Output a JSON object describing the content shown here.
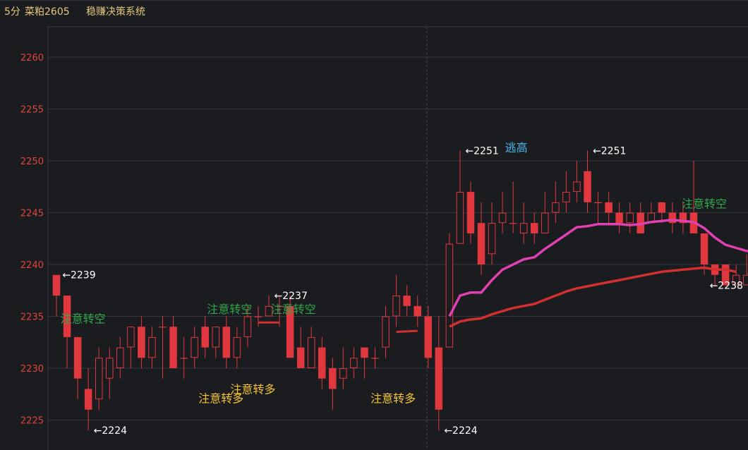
{
  "header": {
    "timeframe": "5分",
    "symbol": "菜粕2605",
    "system": "稳赚决策系统"
  },
  "chart_data": {
    "type": "candlestick",
    "ylim": [
      2222,
      2264
    ],
    "y_ticks": [
      2225,
      2230,
      2235,
      2240,
      2245,
      2250,
      2255,
      2260
    ],
    "grid": true,
    "candles": [
      [
        2239,
        2237,
        2239,
        2235
      ],
      [
        2237,
        2233,
        2237,
        2230
      ],
      [
        2233,
        2229,
        2233,
        2227
      ],
      [
        2228,
        2226,
        2230,
        2224
      ],
      [
        2227,
        2231,
        2232,
        2226
      ],
      [
        2229,
        2231,
        2232,
        2227
      ],
      [
        2230,
        2232,
        2233,
        2229
      ],
      [
        2232,
        2234,
        2234,
        2230
      ],
      [
        2234,
        2231,
        2235,
        2230
      ],
      [
        2231,
        2233,
        2234,
        2230
      ],
      [
        2234,
        2234,
        2235,
        2229
      ],
      [
        2234,
        2230,
        2235,
        2230
      ],
      [
        2231,
        2231,
        2233,
        2229
      ],
      [
        2231,
        2233,
        2234,
        2230
      ],
      [
        2234,
        2232,
        2235,
        2231
      ],
      [
        2232,
        2234,
        2234,
        2231
      ],
      [
        2234,
        2231,
        2235,
        2230
      ],
      [
        2231,
        2233,
        2234,
        2230
      ],
      [
        2233,
        2235,
        2236,
        2232
      ],
      [
        2235,
        2235,
        2236,
        2234
      ],
      [
        2235,
        2236,
        2237,
        2235
      ],
      [
        2236,
        2236,
        2237,
        2234
      ],
      [
        2236,
        2231,
        2237,
        2231
      ],
      [
        2232,
        2230,
        2234,
        2230
      ],
      [
        2230,
        2233,
        2234,
        2230
      ],
      [
        2232,
        2229,
        2233,
        2228
      ],
      [
        2230,
        2228,
        2231,
        2226
      ],
      [
        2229,
        2230,
        2232,
        2228
      ],
      [
        2230,
        2231,
        2232,
        2229
      ],
      [
        2232,
        2231,
        2232,
        2229
      ],
      [
        2231,
        2231,
        2232,
        2230
      ],
      [
        2232,
        2235,
        2236,
        2231
      ],
      [
        2235,
        2237,
        2239,
        2234
      ],
      [
        2237,
        2236,
        2238,
        2235
      ],
      [
        2236,
        2235,
        2237,
        2234
      ],
      [
        2235,
        2231,
        2236,
        2230
      ],
      [
        2232,
        2226,
        2235,
        2224
      ],
      [
        2232,
        2242,
        2243,
        2232
      ],
      [
        2242,
        2247,
        2251,
        2242
      ],
      [
        2247,
        2243,
        2248,
        2242
      ],
      [
        2244,
        2240,
        2246,
        2239
      ],
      [
        2241,
        2244,
        2246,
        2240
      ],
      [
        2244,
        2245,
        2247,
        2243
      ],
      [
        2244,
        2244,
        2248,
        2243
      ],
      [
        2243,
        2244,
        2246,
        2242
      ],
      [
        2244,
        2243,
        2245,
        2242
      ],
      [
        2243,
        2245,
        2247,
        2243
      ],
      [
        2245,
        2246,
        2248,
        2244
      ],
      [
        2246,
        2247,
        2249,
        2245
      ],
      [
        2247,
        2248,
        2250,
        2246
      ],
      [
        2249,
        2246,
        2251,
        2245
      ],
      [
        2246,
        2246,
        2247,
        2244
      ],
      [
        2246,
        2245,
        2247,
        2244
      ],
      [
        2245,
        2244,
        2246,
        2243
      ],
      [
        2244,
        2245,
        2246,
        2243
      ],
      [
        2245,
        2243,
        2246,
        2243
      ],
      [
        2244,
        2245,
        2246,
        2244
      ],
      [
        2246,
        2245,
        2246,
        2244
      ],
      [
        2245,
        2244,
        2246,
        2243
      ],
      [
        2245,
        2244,
        2246,
        2243
      ],
      [
        2245,
        2243,
        2250,
        2243
      ],
      [
        2243,
        2240,
        2243,
        2239
      ],
      [
        2240,
        2239,
        2240,
        2238
      ],
      [
        2240,
        2238,
        2240,
        2238
      ],
      [
        2238,
        2239,
        2240,
        2238
      ],
      [
        2238,
        2239,
        2241,
        2238
      ]
    ],
    "ma_fast": [
      [
        37,
        2235
      ],
      [
        38,
        2237
      ],
      [
        39,
        2237.3
      ],
      [
        40,
        2237.3
      ],
      [
        41,
        2238.5
      ],
      [
        42,
        2239.5
      ],
      [
        43,
        2240
      ],
      [
        44,
        2240.5
      ],
      [
        45,
        2240.7
      ],
      [
        46,
        2241.5
      ],
      [
        47,
        2242.2
      ],
      [
        48,
        2242.9
      ],
      [
        49,
        2243.6
      ],
      [
        50,
        2243.7
      ],
      [
        51,
        2243.9
      ],
      [
        52,
        2243.9
      ],
      [
        53,
        2243.9
      ],
      [
        54,
        2243.8
      ],
      [
        55,
        2243.9
      ],
      [
        56,
        2244.1
      ],
      [
        57,
        2244.2
      ],
      [
        58,
        2244.3
      ],
      [
        59,
        2244.2
      ],
      [
        60,
        2244.1
      ],
      [
        61,
        2243.5
      ],
      [
        62,
        2242.6
      ],
      [
        63,
        2241.9
      ],
      [
        64,
        2241.6
      ],
      [
        65,
        2241.3
      ],
      [
        66,
        2241.2
      ]
    ],
    "ma_slow": [
      [
        37,
        2234
      ],
      [
        38,
        2234.5
      ],
      [
        39,
        2234.7
      ],
      [
        40,
        2234.8
      ],
      [
        41,
        2235.2
      ],
      [
        42,
        2235.5
      ],
      [
        43,
        2235.8
      ],
      [
        44,
        2236
      ],
      [
        45,
        2236.2
      ],
      [
        46,
        2236.6
      ],
      [
        47,
        2237
      ],
      [
        48,
        2237.4
      ],
      [
        49,
        2237.7
      ],
      [
        50,
        2237.9
      ],
      [
        51,
        2238.1
      ],
      [
        52,
        2238.3
      ],
      [
        53,
        2238.5
      ],
      [
        54,
        2238.7
      ],
      [
        55,
        2238.9
      ],
      [
        56,
        2239.1
      ],
      [
        57,
        2239.3
      ],
      [
        58,
        2239.4
      ],
      [
        59,
        2239.5
      ],
      [
        60,
        2239.6
      ],
      [
        61,
        2239.7
      ],
      [
        62,
        2239.5
      ],
      [
        63,
        2239.5
      ],
      [
        64,
        2239.3
      ]
    ],
    "short_line": [
      [
        19,
        2234.4
      ],
      [
        21,
        2234.4
      ]
    ],
    "short_line2": [
      [
        32,
        2233.5
      ],
      [
        34,
        2233.6
      ]
    ],
    "annotations": [
      {
        "text": "注意转空",
        "x": 2.5,
        "y": 2234.8,
        "color": "#2fa64a"
      },
      {
        "text": "注意转空",
        "x": 16.3,
        "y": 2235.7,
        "color": "#2fa64a"
      },
      {
        "text": "注意转空",
        "x": 22.3,
        "y": 2235.7,
        "color": "#2fa64a"
      },
      {
        "text": "注意转空",
        "x": 61,
        "y": 2245.9,
        "color": "#2fa64a"
      },
      {
        "text": "注意转多",
        "x": 15.5,
        "y": 2227.1,
        "color": "#f2c230"
      },
      {
        "text": "注意转多",
        "x": 18.5,
        "y": 2228.0,
        "color": "#f2c230"
      },
      {
        "text": "注意转多",
        "x": 31.7,
        "y": 2227.1,
        "color": "#f2c230"
      },
      {
        "text": "逃高",
        "x": 43.3,
        "y": 2251.3,
        "color": "#47b8e8"
      }
    ],
    "price_labels": [
      {
        "text": "←2239",
        "x": 0.55,
        "y": 2239
      },
      {
        "text": "←2224",
        "x": 3.5,
        "y": 2224
      },
      {
        "text": "←2237",
        "x": 20.5,
        "y": 2237
      },
      {
        "text": "←2224",
        "x": 36.5,
        "y": 2224
      },
      {
        "text": "←2251",
        "x": 38.5,
        "y": 2251
      },
      {
        "text": "←2251",
        "x": 50.5,
        "y": 2251
      },
      {
        "text": "←2238",
        "x": 61.5,
        "y": 2238
      }
    ]
  },
  "colors": {
    "up": "#e0383e",
    "down": "#e0383e",
    "ma_fast": "#e040b0",
    "ma_slow": "#d23030",
    "grid": "#34363c",
    "tick": "#e0443a"
  }
}
